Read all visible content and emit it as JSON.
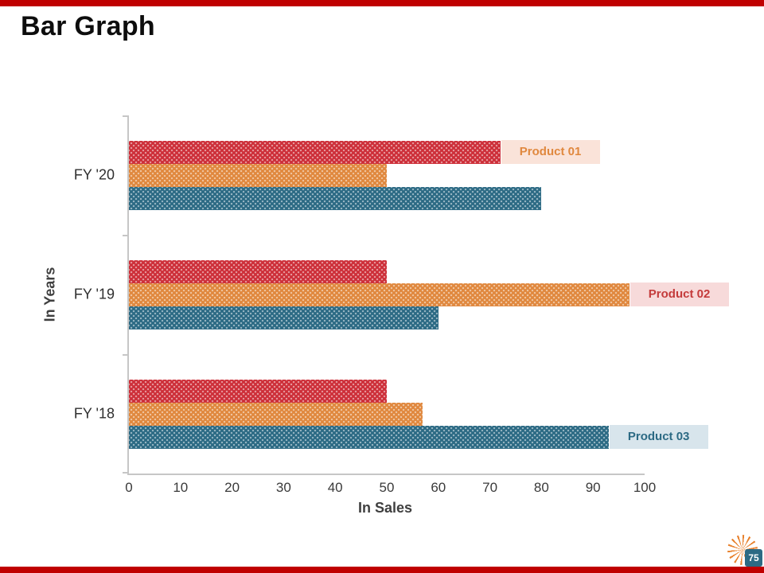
{
  "slide": {
    "title": "Bar Graph",
    "page_number": "75"
  },
  "theme": {
    "strip_color": "#c00000",
    "axis_color": "#c6c6c6",
    "sun_color": "#e8822e",
    "page_box_color": "#2c6a84"
  },
  "chart_data": {
    "type": "bar",
    "orientation": "horizontal",
    "title": "Bar Graph",
    "xlabel": "In Sales",
    "ylabel": "In Years",
    "xlim": [
      0,
      100
    ],
    "xticks": [
      0,
      10,
      20,
      30,
      40,
      50,
      60,
      70,
      80,
      90,
      100
    ],
    "categories": [
      "FY '20",
      "FY '19",
      "FY '18"
    ],
    "series": [
      {
        "name": "Product 01",
        "color": "#cd2f39",
        "values": [
          72,
          50,
          50
        ]
      },
      {
        "name": "Product 02",
        "color": "#e0883e",
        "values": [
          50,
          97,
          57
        ]
      },
      {
        "name": "Product 03",
        "color": "#2c6a84",
        "values": [
          80,
          60,
          93
        ]
      }
    ],
    "labels": [
      {
        "text": "Product 01",
        "category_index": 0,
        "series_index": 0,
        "bg": "#fae3d9",
        "color": "#e0883e"
      },
      {
        "text": "Product 02",
        "category_index": 1,
        "series_index": 1,
        "bg": "#f7dada",
        "color": "#c43b3b"
      },
      {
        "text": "Product 03",
        "category_index": 2,
        "series_index": 2,
        "bg": "#d8e5ec",
        "color": "#2c6a84"
      }
    ],
    "grid": false,
    "legend_position": "inline-labels"
  }
}
